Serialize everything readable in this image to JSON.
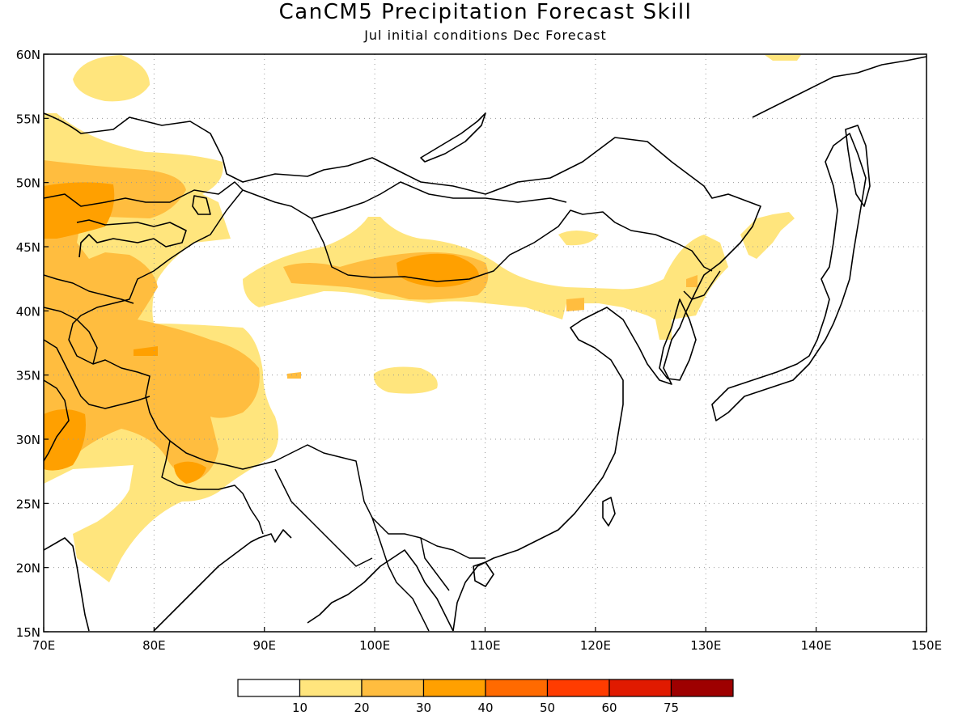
{
  "title": "CanCM5 Precipitation Forecast Skill",
  "subtitle": "Jul initial conditions  Dec Forecast",
  "map": {
    "lon_range": [
      70,
      150
    ],
    "lat_range": [
      15,
      60
    ],
    "lon_ticks": [
      "70E",
      "80E",
      "90E",
      "100E",
      "110E",
      "120E",
      "130E",
      "140E",
      "150E"
    ],
    "lat_ticks": [
      "15N",
      "20N",
      "25N",
      "30N",
      "35N",
      "40N",
      "45N",
      "50N",
      "55N",
      "60N"
    ],
    "gridlines": "dotted",
    "shading_colors": {
      "10-20": "#ffe57d",
      "20-30": "#ffbd3f",
      "30-40": "#ffa000"
    },
    "coastline_color": "#000000"
  },
  "colorbar": {
    "labels": [
      "10",
      "20",
      "30",
      "40",
      "50",
      "60",
      "75"
    ],
    "colors": [
      "#ffffff",
      "#ffe57d",
      "#ffbd3f",
      "#ffa000",
      "#ff6a00",
      "#ff3c00",
      "#e01a00",
      "#9e0000"
    ]
  }
}
